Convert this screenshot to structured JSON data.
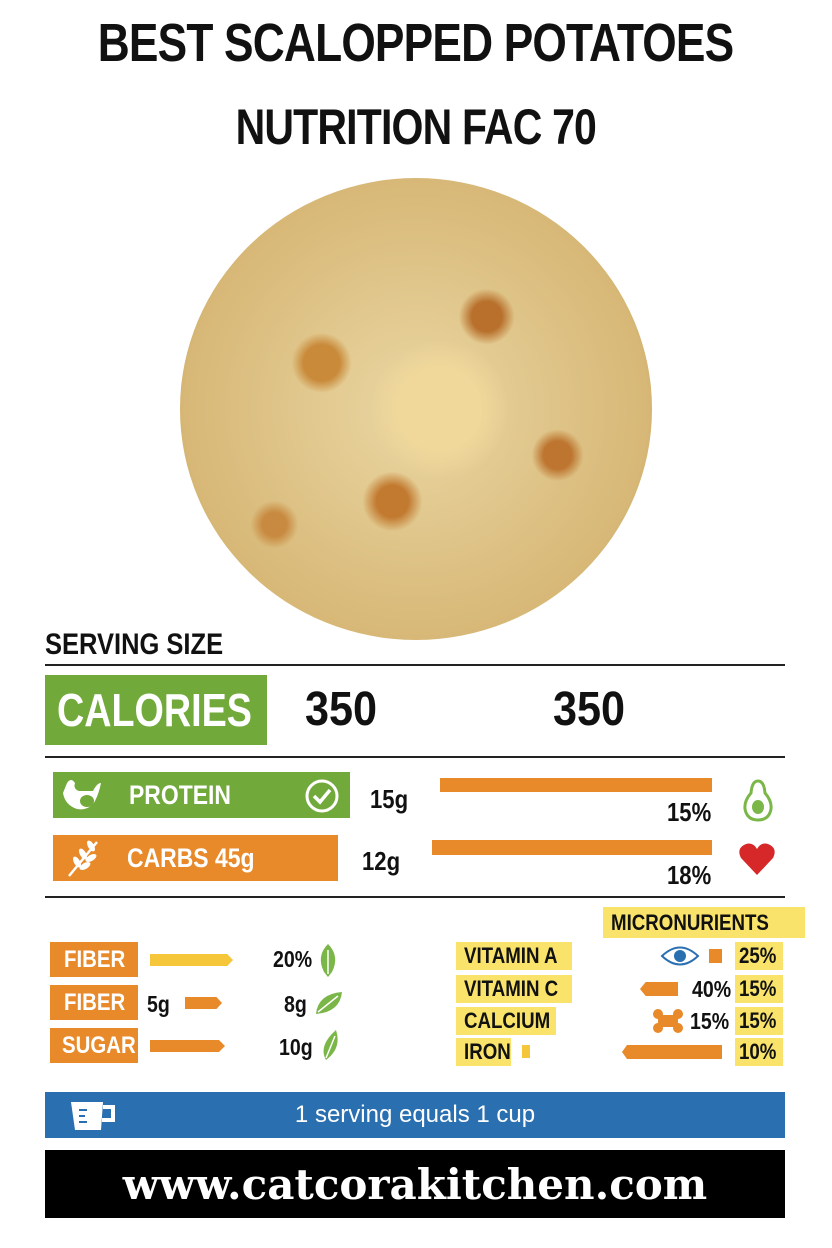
{
  "title": {
    "line1": "BEST SCALOPPED POTATOES",
    "line2": "NUTRITION FAC 70"
  },
  "serving_size_label": "SERVING SIZE",
  "calories": {
    "label": "CALORIES",
    "value1": "350",
    "value2": "350"
  },
  "macros": [
    {
      "label": "PROTEIN",
      "amount": "15g",
      "percent": "15%",
      "icon": "chicken-icon",
      "end_icon": "avocado-icon",
      "color": "#72a93b"
    },
    {
      "label": "CARBS 45g",
      "amount": "12g",
      "percent": "18%",
      "icon": "wheat-icon",
      "end_icon": "heart-icon",
      "color": "#e8892a"
    }
  ],
  "other": [
    {
      "label": "FIBER",
      "amount": "",
      "value": "20%"
    },
    {
      "label": "FIBER",
      "amount": "5g",
      "value": "8g"
    },
    {
      "label": "SUGAR",
      "amount": "",
      "value": "10g"
    }
  ],
  "micronutrients": {
    "title": "MICRONURIENTS",
    "items": [
      {
        "label": "VITAMIN A",
        "mid": "",
        "value": "25%",
        "icon": "eye-icon"
      },
      {
        "label": "VITAMIN C",
        "mid": "40%",
        "value": "15%"
      },
      {
        "label": "CALCIUM",
        "mid": "15%",
        "value": "15%",
        "icon": "bone-icon"
      },
      {
        "label": "IRON",
        "mid": "",
        "value": "10%"
      }
    ]
  },
  "serving_note": "1 serving equals 1 cup",
  "website": "www.catcorakitchen.com",
  "colors": {
    "green": "#72a93b",
    "orange": "#e8892a",
    "yellow": "#f9e36a",
    "blue": "#2a6fb0"
  }
}
